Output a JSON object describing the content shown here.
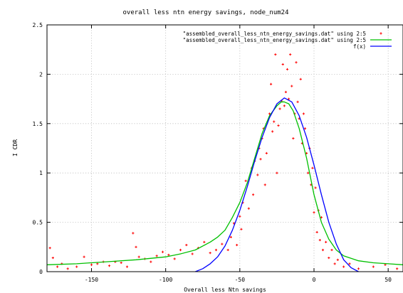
{
  "chart_data": {
    "type": "scatter",
    "title": "overall less ntn energy savings, node_num24",
    "xlabel": "Overall less Ntn savings",
    "ylabel": "I CDR",
    "xlim": [
      -180,
      60
    ],
    "ylim": [
      0,
      2.5
    ],
    "x_ticks": [
      "-150",
      "-100",
      "-50",
      "0",
      "50"
    ],
    "y_ticks": [
      "0",
      "0.5",
      "1",
      "1.5",
      "2",
      "2.5"
    ],
    "grid": true,
    "legend_position": "top-right",
    "series": [
      {
        "name": "\"assembled_overall_less_ntn_energy_savings.dat\" using 2:5",
        "kind": "points",
        "color": "#ff0000",
        "points": [
          [
            -178,
            0.24
          ],
          [
            -176,
            0.14
          ],
          [
            -173,
            0.05
          ],
          [
            -170,
            0.08
          ],
          [
            -166,
            0.03
          ],
          [
            -160,
            0.05
          ],
          [
            -155,
            0.15
          ],
          [
            -150,
            0.07
          ],
          [
            -146,
            0.08
          ],
          [
            -142,
            0.1
          ],
          [
            -138,
            0.06
          ],
          [
            -134,
            0.1
          ],
          [
            -130,
            0.09
          ],
          [
            -126,
            0.05
          ],
          [
            -122,
            0.39
          ],
          [
            -120,
            0.25
          ],
          [
            -118,
            0.15
          ],
          [
            -114,
            0.13
          ],
          [
            -110,
            0.1
          ],
          [
            -106,
            0.16
          ],
          [
            -102,
            0.2
          ],
          [
            -98,
            0.17
          ],
          [
            -94,
            0.13
          ],
          [
            -90,
            0.22
          ],
          [
            -86,
            0.27
          ],
          [
            -82,
            0.18
          ],
          [
            -78,
            0.24
          ],
          [
            -74,
            0.3
          ],
          [
            -70,
            0.19
          ],
          [
            -66,
            0.22
          ],
          [
            -62,
            0.28
          ],
          [
            -58,
            0.22
          ],
          [
            -56,
            0.35
          ],
          [
            -54,
            0.49
          ],
          [
            -52,
            0.27
          ],
          [
            -50,
            0.56
          ],
          [
            -49,
            0.43
          ],
          [
            -48,
            0.7
          ],
          [
            -46,
            0.92
          ],
          [
            -44,
            0.64
          ],
          [
            -42,
            1.05
          ],
          [
            -41,
            0.78
          ],
          [
            -40,
            1.12
          ],
          [
            -38,
            0.98
          ],
          [
            -37,
            1.25
          ],
          [
            -36,
            1.14
          ],
          [
            -35,
            1.35
          ],
          [
            -34,
            1.45
          ],
          [
            -33,
            0.88
          ],
          [
            -32,
            1.2
          ],
          [
            -30,
            1.6
          ],
          [
            -29,
            1.9
          ],
          [
            -28,
            1.42
          ],
          [
            -27,
            1.52
          ],
          [
            -26,
            2.2
          ],
          [
            -25,
            1.0
          ],
          [
            -24,
            1.48
          ],
          [
            -23,
            1.65
          ],
          [
            -22,
            1.73
          ],
          [
            -21,
            2.1
          ],
          [
            -20,
            1.68
          ],
          [
            -19,
            1.82
          ],
          [
            -18,
            2.05
          ],
          [
            -17,
            1.75
          ],
          [
            -16,
            2.2
          ],
          [
            -15,
            1.88
          ],
          [
            -14,
            1.35
          ],
          [
            -13,
            1.6
          ],
          [
            -12,
            2.12
          ],
          [
            -11,
            1.72
          ],
          [
            -10,
            1.55
          ],
          [
            -9,
            1.95
          ],
          [
            -8,
            1.3
          ],
          [
            -7,
            1.6
          ],
          [
            -6,
            1.45
          ],
          [
            -5,
            1.2
          ],
          [
            -4,
            1.0
          ],
          [
            -3,
            1.25
          ],
          [
            -2,
            0.88
          ],
          [
            -1,
            1.05
          ],
          [
            0,
            0.6
          ],
          [
            1,
            0.85
          ],
          [
            2,
            0.4
          ],
          [
            3,
            0.62
          ],
          [
            4,
            0.32
          ],
          [
            5,
            0.55
          ],
          [
            6,
            0.22
          ],
          [
            8,
            0.3
          ],
          [
            10,
            0.14
          ],
          [
            12,
            0.22
          ],
          [
            14,
            0.08
          ],
          [
            16,
            0.12
          ],
          [
            20,
            0.05
          ],
          [
            24,
            0.08
          ],
          [
            30,
            0.03
          ],
          [
            40,
            0.05
          ],
          [
            48,
            0.07
          ],
          [
            56,
            0.03
          ]
        ]
      },
      {
        "name": "\"assembled_overall_less_ntn_energy_savings.dat\" using 2:5",
        "kind": "line",
        "color": "#00c000",
        "points": [
          [
            -180,
            0.07
          ],
          [
            -160,
            0.08
          ],
          [
            -140,
            0.1
          ],
          [
            -120,
            0.12
          ],
          [
            -100,
            0.15
          ],
          [
            -90,
            0.18
          ],
          [
            -80,
            0.22
          ],
          [
            -70,
            0.3
          ],
          [
            -65,
            0.35
          ],
          [
            -60,
            0.42
          ],
          [
            -55,
            0.55
          ],
          [
            -50,
            0.7
          ],
          [
            -45,
            0.9
          ],
          [
            -40,
            1.15
          ],
          [
            -35,
            1.4
          ],
          [
            -30,
            1.58
          ],
          [
            -25,
            1.68
          ],
          [
            -22,
            1.72
          ],
          [
            -20,
            1.72
          ],
          [
            -17,
            1.7
          ],
          [
            -14,
            1.63
          ],
          [
            -10,
            1.45
          ],
          [
            -5,
            1.15
          ],
          [
            0,
            0.78
          ],
          [
            5,
            0.5
          ],
          [
            10,
            0.33
          ],
          [
            15,
            0.22
          ],
          [
            20,
            0.16
          ],
          [
            30,
            0.11
          ],
          [
            40,
            0.09
          ],
          [
            50,
            0.08
          ],
          [
            60,
            0.07
          ]
        ]
      },
      {
        "name": "f(x)",
        "kind": "line",
        "color": "#0000ff",
        "points": [
          [
            -80,
            0.0
          ],
          [
            -75,
            0.03
          ],
          [
            -70,
            0.08
          ],
          [
            -65,
            0.15
          ],
          [
            -60,
            0.26
          ],
          [
            -55,
            0.42
          ],
          [
            -50,
            0.62
          ],
          [
            -45,
            0.86
          ],
          [
            -40,
            1.12
          ],
          [
            -35,
            1.36
          ],
          [
            -30,
            1.56
          ],
          [
            -25,
            1.7
          ],
          [
            -20,
            1.76
          ],
          [
            -15,
            1.72
          ],
          [
            -10,
            1.58
          ],
          [
            -5,
            1.36
          ],
          [
            0,
            1.08
          ],
          [
            5,
            0.78
          ],
          [
            10,
            0.5
          ],
          [
            15,
            0.28
          ],
          [
            20,
            0.12
          ],
          [
            25,
            0.04
          ],
          [
            30,
            0.0
          ]
        ]
      }
    ]
  }
}
